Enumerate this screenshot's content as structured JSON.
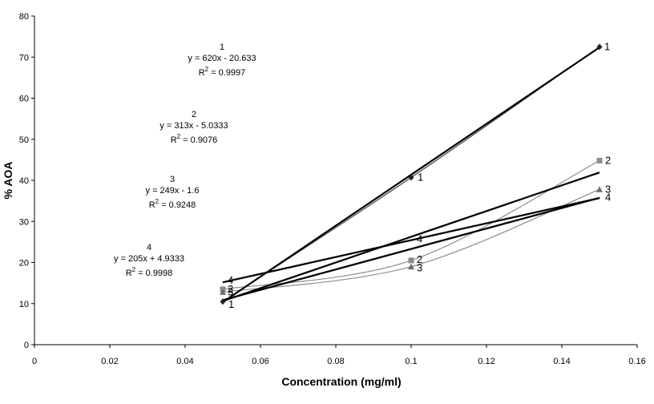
{
  "chart_data": {
    "type": "scatter",
    "title": "",
    "xlabel": "Concentration (mg/ml)",
    "ylabel": "% AOA",
    "xlim": [
      0,
      0.16
    ],
    "ylim": [
      0,
      80
    ],
    "x_ticks": [
      "0",
      "0.02",
      "0.04",
      "0.06",
      "0.08",
      "0.1",
      "0.12",
      "0.14",
      "0.16"
    ],
    "y_ticks": [
      "0",
      "10",
      "20",
      "30",
      "40",
      "50",
      "60",
      "70",
      "80"
    ],
    "grid": false,
    "legend": "none",
    "series": [
      {
        "name": "1",
        "marker": "diamond",
        "x": [
          0.05,
          0.1,
          0.15
        ],
        "y": [
          10.5,
          40.7,
          72.5
        ],
        "trendline": {
          "slope": 620,
          "intercept": -20.633
        },
        "equation": {
          "label": "1",
          "eq": "y = 620x - 20.633",
          "r2_prefix": "R",
          "r2_sup": "2",
          "r2_value": " = 0.9997"
        }
      },
      {
        "name": "2",
        "marker": "square",
        "x": [
          0.05,
          0.1,
          0.15
        ],
        "y": [
          13.5,
          20.5,
          44.8
        ],
        "trendline": {
          "slope": 313,
          "intercept": -5.0333
        },
        "equation": {
          "label": "2",
          "eq": "y = 313x - 5.0333",
          "r2_prefix": "R",
          "r2_sup": "2",
          "r2_value": " = 0.9076"
        }
      },
      {
        "name": "3",
        "marker": "triangle",
        "x": [
          0.05,
          0.1,
          0.15
        ],
        "y": [
          12.8,
          19.0,
          37.8
        ],
        "trendline": {
          "slope": 249,
          "intercept": -1.6
        },
        "equation": {
          "label": "3",
          "eq": "y = 249x - 1.6",
          "r2_prefix": "R",
          "r2_sup": "2",
          "r2_value": " = 0.9248"
        }
      },
      {
        "name": "4",
        "marker": "none",
        "x": [
          0.05,
          0.1,
          0.15
        ],
        "y": [
          15.2,
          25.5,
          35.8
        ],
        "trendline": {
          "slope": 205,
          "intercept": 4.9333
        },
        "equation": {
          "label": "4",
          "eq": "y = 205x + 4.9333",
          "r2_prefix": "R",
          "r2_sup": "2",
          "r2_value": " = 0.9998"
        }
      }
    ],
    "point_labels": [
      {
        "series": "1",
        "x": 0.05,
        "y": 10.5,
        "text": "1"
      },
      {
        "series": "1",
        "x": 0.1,
        "y": 40.7,
        "text": "1"
      },
      {
        "series": "1",
        "x": 0.15,
        "y": 72.5,
        "text": "1"
      },
      {
        "series": "2",
        "x": 0.05,
        "y": 13.5,
        "text": "2"
      },
      {
        "series": "2",
        "x": 0.1,
        "y": 20.5,
        "text": "2"
      },
      {
        "series": "2",
        "x": 0.15,
        "y": 44.8,
        "text": "2"
      },
      {
        "series": "3",
        "x": 0.05,
        "y": 12.8,
        "text": "3"
      },
      {
        "series": "3",
        "x": 0.1,
        "y": 19.0,
        "text": "3"
      },
      {
        "series": "3",
        "x": 0.15,
        "y": 37.8,
        "text": "3"
      },
      {
        "series": "4",
        "x": 0.05,
        "y": 15.2,
        "text": "4"
      },
      {
        "series": "4",
        "x": 0.1,
        "y": 25.5,
        "text": "4"
      },
      {
        "series": "4",
        "x": 0.15,
        "y": 35.8,
        "text": "4"
      }
    ],
    "colors": {
      "data_line": "#8c8c8c",
      "data_line_1": "#444444",
      "trendline": "#000000",
      "marker_1": "#222222",
      "marker_2": "#8c8c8c",
      "marker_3": "#6e6e6e"
    }
  }
}
